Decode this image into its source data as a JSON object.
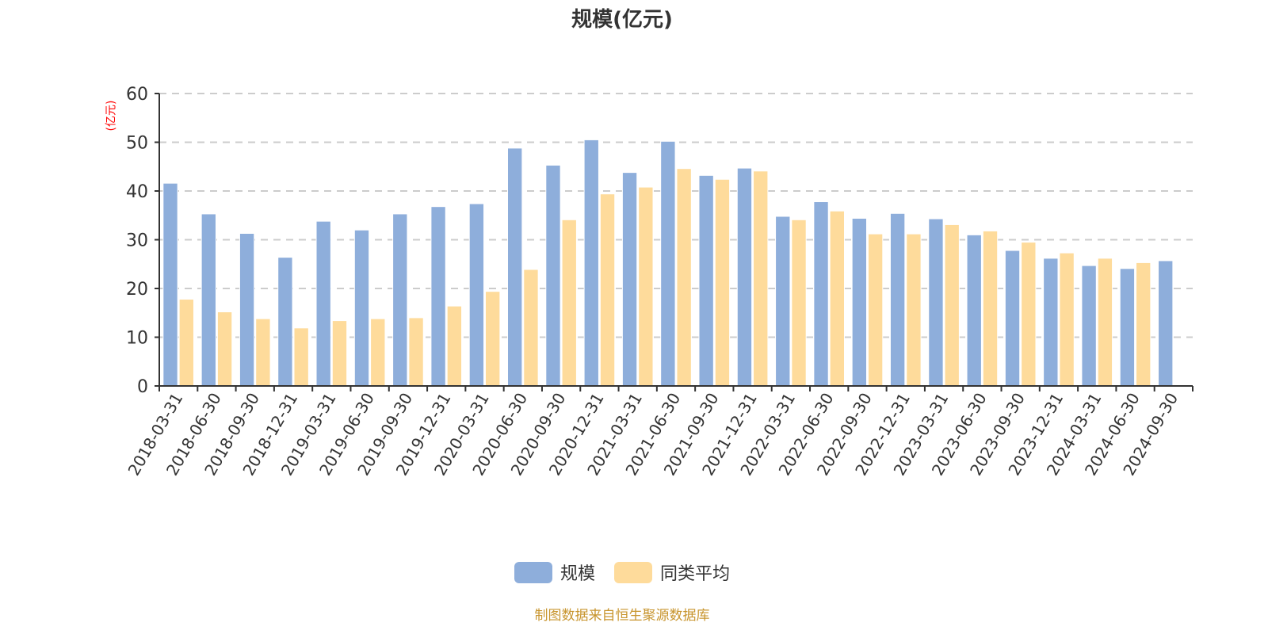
{
  "chart_data": {
    "type": "bar",
    "title": "规模(亿元)",
    "xlabel": "",
    "ylabel": "(亿元)",
    "ylim": [
      0,
      60
    ],
    "yticks": [
      0,
      10,
      20,
      30,
      40,
      50,
      60
    ],
    "grid": true,
    "legend_position": "bottom",
    "categories": [
      "2018-03-31",
      "2018-06-30",
      "2018-09-30",
      "2018-12-31",
      "2019-03-31",
      "2019-06-30",
      "2019-09-30",
      "2019-12-31",
      "2020-03-31",
      "2020-06-30",
      "2020-09-30",
      "2020-12-31",
      "2021-03-31",
      "2021-06-30",
      "2021-09-30",
      "2021-12-31",
      "2022-03-31",
      "2022-06-30",
      "2022-09-30",
      "2022-12-31",
      "2023-03-31",
      "2023-06-30",
      "2023-09-30",
      "2023-12-31",
      "2024-03-31",
      "2024-06-30",
      "2024-09-30"
    ],
    "series": [
      {
        "name": "规模",
        "color": "#8eaedb",
        "values": [
          41.6,
          35.3,
          31.3,
          26.4,
          33.8,
          32.0,
          35.3,
          36.8,
          37.4,
          48.8,
          45.3,
          50.5,
          43.8,
          50.2,
          43.2,
          44.7,
          34.8,
          37.8,
          34.4,
          35.4,
          34.3,
          31.0,
          27.8,
          26.2,
          24.7,
          24.1,
          25.7
        ]
      },
      {
        "name": "同类平均",
        "color": "#fedb9b",
        "values": [
          17.8,
          15.2,
          13.8,
          11.9,
          13.4,
          13.8,
          14.0,
          16.4,
          19.4,
          23.9,
          34.1,
          39.4,
          40.8,
          44.6,
          42.4,
          44.1,
          34.1,
          35.9,
          31.2,
          31.2,
          33.1,
          31.8,
          29.5,
          27.3,
          26.2,
          25.3,
          null
        ]
      }
    ]
  },
  "title": "规模(亿元)",
  "y_axis_unit": "(亿元)",
  "legend": [
    {
      "label": "规模",
      "color": "#8eaedb"
    },
    {
      "label": "同类平均",
      "color": "#fedb9b"
    }
  ],
  "footer": "制图数据来自恒生聚源数据库"
}
